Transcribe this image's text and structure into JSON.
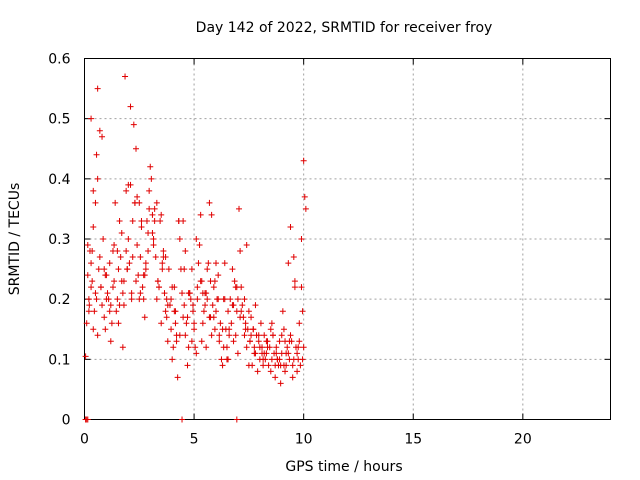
{
  "chart_data": {
    "type": "scatter",
    "title": "Day 142 of 2022, SRMTID for receiver froy",
    "xlabel": "GPS time / hours",
    "ylabel": "SRMTID / TECUs",
    "xlim": [
      0,
      24
    ],
    "ylim": [
      0,
      0.6
    ],
    "xticks": [
      0,
      5,
      10,
      15,
      20
    ],
    "xtick_labels": [
      "0",
      "5",
      "10",
      "15",
      "20"
    ],
    "yticks": [
      0,
      0.1,
      0.2,
      0.3,
      0.4,
      0.5,
      0.6
    ],
    "ytick_labels": [
      "0",
      "0.1",
      "0.2",
      "0.3",
      "0.4",
      "0.5",
      "0.6"
    ],
    "grid": true,
    "marker": "+",
    "color": "#e00000",
    "series": [
      {
        "name": "SRMTID",
        "x": [
          0.05,
          0.1,
          0.15,
          0.2,
          0.25,
          0.3,
          0.35,
          0.4,
          0.45,
          0.5,
          0.55,
          0.6,
          0.65,
          0.7,
          0.75,
          0.8,
          0.85,
          0.9,
          0.95,
          1.0,
          1.05,
          1.1,
          1.15,
          1.2,
          1.25,
          1.3,
          1.35,
          1.4,
          1.45,
          1.5,
          1.55,
          1.6,
          1.65,
          1.7,
          1.75,
          1.8,
          1.85,
          1.9,
          1.95,
          2.0,
          2.05,
          2.1,
          2.15,
          2.2,
          2.25,
          2.3,
          2.35,
          2.4,
          2.45,
          2.5,
          2.55,
          2.6,
          2.65,
          2.7,
          2.75,
          2.8,
          2.85,
          2.9,
          2.95,
          3.0,
          3.05,
          3.1,
          3.15,
          3.2,
          3.25,
          3.3,
          3.35,
          3.4,
          3.45,
          3.5,
          3.55,
          3.6,
          3.65,
          3.7,
          3.75,
          3.8,
          3.85,
          3.9,
          3.95,
          4.0,
          4.05,
          4.1,
          4.15,
          4.2,
          4.25,
          4.3,
          4.35,
          4.4,
          4.45,
          4.5,
          4.55,
          4.6,
          4.65,
          4.7,
          4.75,
          4.8,
          4.85,
          4.9,
          4.95,
          5.0,
          5.05,
          5.1,
          5.15,
          5.2,
          5.25,
          5.3,
          5.35,
          5.4,
          5.45,
          5.5,
          5.55,
          5.6,
          5.65,
          5.7,
          5.75,
          5.8,
          5.85,
          5.9,
          5.95,
          6.0,
          6.05,
          6.1,
          6.15,
          6.2,
          6.25,
          6.3,
          6.35,
          6.4,
          6.45,
          6.5,
          6.55,
          6.6,
          6.65,
          6.7,
          6.75,
          6.8,
          6.85,
          6.9,
          6.95,
          7.0,
          7.05,
          7.1,
          7.15,
          7.2,
          7.25,
          7.3,
          7.35,
          7.4,
          7.45,
          7.5,
          7.55,
          7.6,
          7.65,
          7.7,
          7.75,
          7.8,
          7.85,
          7.9,
          7.95,
          8.0,
          8.05,
          8.1,
          8.15,
          8.2,
          8.25,
          8.3,
          8.35,
          8.4,
          8.45,
          8.5,
          8.55,
          8.6,
          8.65,
          8.7,
          8.75,
          8.8,
          8.85,
          8.9,
          8.95,
          9.0,
          9.05,
          9.1,
          9.15,
          9.2,
          9.25,
          9.3,
          9.35,
          9.4,
          9.45,
          9.5,
          9.55,
          9.6,
          9.65,
          9.7,
          9.75,
          9.8,
          9.85,
          9.9,
          9.95,
          10.0,
          10.05,
          10.1,
          0.4,
          0.5,
          0.6,
          0.7,
          0.8,
          1.9,
          2.0,
          2.1,
          2.3,
          2.4,
          3.1,
          3.2,
          3.3,
          4.5,
          4.6,
          5.7,
          5.8,
          6.0,
          7.3,
          7.4,
          9.3,
          9.4,
          0.2,
          0.3,
          0.4,
          1.0,
          1.2,
          1.5,
          1.7,
          2.6,
          2.8,
          3.5,
          3.7,
          4.0,
          4.2,
          4.8,
          5.0,
          5.3,
          5.5,
          6.3,
          6.5,
          6.8,
          7.0,
          7.5,
          7.7,
          8.0,
          8.2,
          8.6,
          8.8,
          9.1,
          9.6,
          9.9,
          0.3,
          0.6,
          0.9,
          1.3,
          1.6,
          1.8,
          2.2,
          2.5,
          2.7,
          2.9,
          3.4,
          3.6,
          3.8,
          4.1,
          4.3,
          4.7,
          4.9,
          5.1,
          5.4,
          5.6,
          5.9,
          6.1,
          6.4,
          6.6,
          6.9,
          7.1,
          7.6,
          7.8,
          8.1,
          8.3,
          8.5,
          8.7,
          8.9,
          9.0,
          9.2,
          9.5,
          9.7,
          9.8,
          10.0,
          0.15,
          0.22,
          0.35,
          0.55,
          0.75,
          0.95,
          1.15,
          1.35,
          1.55,
          1.75,
          1.95,
          2.15,
          2.35,
          2.55,
          2.75,
          2.95,
          3.15,
          3.35,
          3.55,
          3.75,
          3.95,
          4.15,
          4.35,
          4.55,
          4.75,
          4.95,
          5.15,
          5.35,
          5.55,
          5.75,
          5.95,
          6.15,
          6.35,
          6.55,
          6.75,
          6.95,
          7.15,
          7.35,
          7.55,
          7.75,
          7.95,
          8.15,
          8.35,
          8.55,
          8.75,
          8.95,
          9.15,
          9.35,
          9.55,
          9.75,
          9.95,
          0.05,
          0.1,
          0.15,
          4.45,
          6.95
        ],
        "y": [
          0.105,
          0.16,
          0.24,
          0.2,
          0.28,
          0.5,
          0.23,
          0.32,
          0.18,
          0.21,
          0.44,
          0.4,
          0.25,
          0.27,
          0.22,
          0.19,
          0.3,
          0.17,
          0.15,
          0.24,
          0.21,
          0.2,
          0.26,
          0.19,
          0.16,
          0.22,
          0.29,
          0.36,
          0.18,
          0.2,
          0.25,
          0.33,
          0.27,
          0.23,
          0.12,
          0.19,
          0.57,
          0.28,
          0.25,
          0.3,
          0.26,
          0.52,
          0.21,
          0.33,
          0.49,
          0.36,
          0.45,
          0.29,
          0.24,
          0.2,
          0.27,
          0.32,
          0.22,
          0.2,
          0.17,
          0.25,
          0.33,
          0.28,
          0.35,
          0.42,
          0.4,
          0.31,
          0.29,
          0.35,
          0.27,
          0.2,
          0.23,
          0.22,
          0.33,
          0.34,
          0.25,
          0.28,
          0.21,
          0.18,
          0.17,
          0.13,
          0.25,
          0.19,
          0.2,
          0.1,
          0.12,
          0.22,
          0.16,
          0.14,
          0.07,
          0.33,
          0.3,
          0.25,
          0.21,
          0.17,
          0.19,
          0.14,
          0.16,
          0.09,
          0.12,
          0.21,
          0.2,
          0.25,
          0.18,
          0.15,
          0.12,
          0.11,
          0.2,
          0.26,
          0.29,
          0.34,
          0.23,
          0.16,
          0.18,
          0.21,
          0.12,
          0.2,
          0.26,
          0.17,
          0.23,
          0.14,
          0.19,
          0.22,
          0.15,
          0.18,
          0.2,
          0.24,
          0.13,
          0.16,
          0.1,
          0.09,
          0.2,
          0.26,
          0.15,
          0.12,
          0.18,
          0.14,
          0.2,
          0.16,
          0.25,
          0.19,
          0.23,
          0.14,
          0.18,
          0.11,
          0.35,
          0.28,
          0.22,
          0.19,
          0.17,
          0.14,
          0.16,
          0.12,
          0.15,
          0.18,
          0.13,
          0.17,
          0.09,
          0.15,
          0.12,
          0.11,
          0.14,
          0.08,
          0.13,
          0.1,
          0.16,
          0.12,
          0.09,
          0.14,
          0.1,
          0.11,
          0.13,
          0.09,
          0.12,
          0.08,
          0.1,
          0.14,
          0.11,
          0.07,
          0.12,
          0.1,
          0.09,
          0.13,
          0.06,
          0.11,
          0.18,
          0.15,
          0.13,
          0.09,
          0.12,
          0.11,
          0.1,
          0.14,
          0.13,
          0.09,
          0.27,
          0.23,
          0.12,
          0.11,
          0.1,
          0.13,
          0.09,
          0.22,
          0.18,
          0.43,
          0.37,
          0.35,
          0.38,
          0.36,
          0.55,
          0.48,
          0.47,
          0.38,
          0.39,
          0.39,
          0.36,
          0.37,
          0.34,
          0.33,
          0.36,
          0.33,
          0.28,
          0.36,
          0.34,
          0.26,
          0.2,
          0.29,
          0.26,
          0.32,
          0.18,
          0.22,
          0.15,
          0.2,
          0.13,
          0.28,
          0.31,
          0.33,
          0.26,
          0.16,
          0.27,
          0.22,
          0.13,
          0.21,
          0.16,
          0.23,
          0.19,
          0.15,
          0.1,
          0.13,
          0.2,
          0.09,
          0.15,
          0.12,
          0.11,
          0.14,
          0.1,
          0.09,
          0.22,
          0.3,
          0.26,
          0.14,
          0.25,
          0.28,
          0.19,
          0.23,
          0.27,
          0.36,
          0.24,
          0.31,
          0.22,
          0.27,
          0.19,
          0.18,
          0.33,
          0.17,
          0.13,
          0.3,
          0.21,
          0.25,
          0.17,
          0.2,
          0.2,
          0.15,
          0.22,
          0.17,
          0.14,
          0.19,
          0.11,
          0.13,
          0.15,
          0.09,
          0.1,
          0.14,
          0.11,
          0.07,
          0.08,
          0.16,
          0.12,
          0.29,
          0.19,
          0.28,
          0.2,
          0.22,
          0.24,
          0.18,
          0.23,
          0.16,
          0.21,
          0.25,
          0.2,
          0.23,
          0.21,
          0.24,
          0.38,
          0.3,
          0.23,
          0.26,
          0.2,
          0.15,
          0.18,
          0.14,
          0.25,
          0.21,
          0.19,
          0.22,
          0.13,
          0.21,
          0.17,
          0.23,
          0.14,
          0.12,
          0.1,
          0.19,
          0.22,
          0.18,
          0.15,
          0.13,
          0.11,
          0.14,
          0.1,
          0.12,
          0.16,
          0.11,
          0.09,
          0.08,
          0.13,
          0.1,
          0.12,
          0.1,
          0.0,
          0.0,
          0.0,
          0.0,
          0.0
        ]
      }
    ]
  }
}
